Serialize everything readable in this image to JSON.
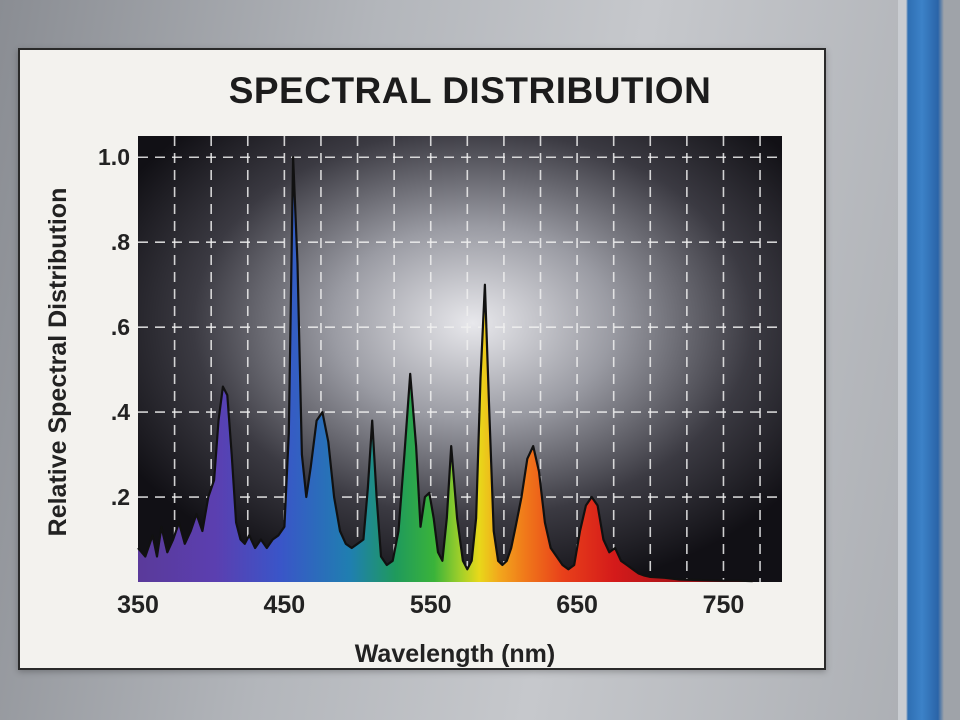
{
  "chart_data": {
    "type": "area",
    "title": "SPECTRAL DISTRIBUTION",
    "xlabel": "Wavelength (nm)",
    "ylabel": "Relative Spectral Distribution",
    "xlim": [
      350,
      790
    ],
    "ylim": [
      0,
      1.05
    ],
    "x_ticks": [
      350,
      450,
      550,
      650,
      750
    ],
    "x_tick_labels": [
      "350",
      "450",
      "550",
      "650",
      "750"
    ],
    "y_ticks": [
      0.2,
      0.4,
      0.6,
      0.8,
      1.0
    ],
    "y_tick_labels": [
      ".2",
      ".4",
      ".6",
      ".8",
      "1.0"
    ],
    "grid": true,
    "x": [
      350,
      355,
      360,
      363,
      366,
      370,
      374,
      378,
      382,
      386,
      390,
      394,
      398,
      402,
      405,
      408,
      411,
      414,
      417,
      420,
      423,
      426,
      430,
      434,
      438,
      442,
      446,
      450,
      453,
      456,
      459,
      462,
      465,
      468,
      472,
      476,
      480,
      484,
      488,
      492,
      496,
      500,
      504,
      507,
      510,
      513,
      516,
      520,
      524,
      528,
      532,
      536,
      540,
      543,
      546,
      549,
      552,
      555,
      558,
      561,
      564,
      568,
      572,
      575,
      578,
      581,
      584,
      587,
      590,
      593,
      596,
      599,
      602,
      605,
      608,
      612,
      616,
      620,
      624,
      628,
      632,
      636,
      640,
      644,
      648,
      652,
      656,
      660,
      664,
      668,
      672,
      676,
      680,
      684,
      688,
      692,
      696,
      700,
      710,
      720,
      730,
      740,
      750,
      760,
      770
    ],
    "values": [
      0.08,
      0.06,
      0.11,
      0.06,
      0.13,
      0.07,
      0.1,
      0.14,
      0.09,
      0.12,
      0.16,
      0.12,
      0.2,
      0.24,
      0.38,
      0.46,
      0.44,
      0.3,
      0.14,
      0.1,
      0.09,
      0.11,
      0.08,
      0.1,
      0.08,
      0.1,
      0.11,
      0.13,
      0.35,
      1.0,
      0.75,
      0.3,
      0.2,
      0.27,
      0.38,
      0.4,
      0.33,
      0.2,
      0.12,
      0.09,
      0.08,
      0.09,
      0.1,
      0.22,
      0.38,
      0.2,
      0.06,
      0.04,
      0.05,
      0.12,
      0.3,
      0.49,
      0.32,
      0.13,
      0.2,
      0.21,
      0.15,
      0.07,
      0.05,
      0.15,
      0.32,
      0.15,
      0.05,
      0.03,
      0.05,
      0.15,
      0.48,
      0.7,
      0.4,
      0.12,
      0.05,
      0.04,
      0.05,
      0.08,
      0.13,
      0.2,
      0.29,
      0.32,
      0.26,
      0.14,
      0.08,
      0.06,
      0.04,
      0.03,
      0.04,
      0.12,
      0.18,
      0.2,
      0.18,
      0.1,
      0.07,
      0.08,
      0.05,
      0.04,
      0.03,
      0.02,
      0.015,
      0.012,
      0.01,
      0.006,
      0.005,
      0.004,
      0.003,
      0.003,
      0.002
    ]
  }
}
